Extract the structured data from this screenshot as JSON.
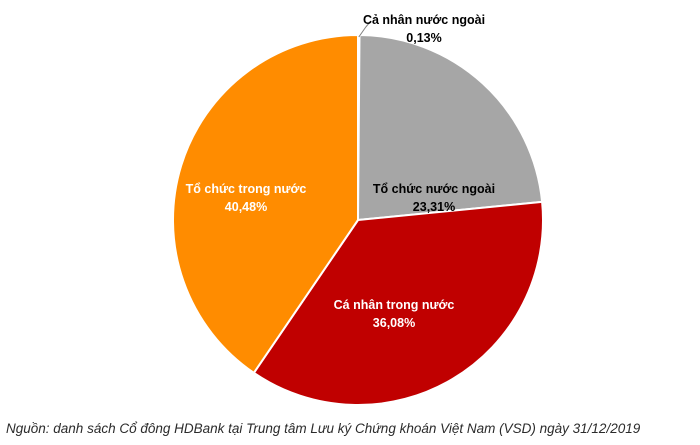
{
  "chart_data": {
    "type": "pie",
    "slices": [
      {
        "label": "Cả nhân nước ngoài",
        "value_text": "0,13%",
        "value": 0.13,
        "color": "#d9d9d9"
      },
      {
        "label": "Tổ chức nước ngoài",
        "value_text": "23,31%",
        "value": 23.31,
        "color": "#a6a6a6"
      },
      {
        "label": "Cá nhân trong nước",
        "value_text": "36,08%",
        "value": 36.08,
        "color": "#c00000"
      },
      {
        "label": "Tổ chức trong nước",
        "value_text": "40,48%",
        "value": 40.48,
        "color": "#ff8c00"
      }
    ],
    "start_angle": "12 o'clock",
    "direction": "clockwise",
    "legend": "none"
  },
  "source_note": "Nguồn: danh sách Cổ đông HDBank tại Trung tâm Lưu ký Chứng khoán Việt Nam (VSD) ngày 31/12/2019"
}
